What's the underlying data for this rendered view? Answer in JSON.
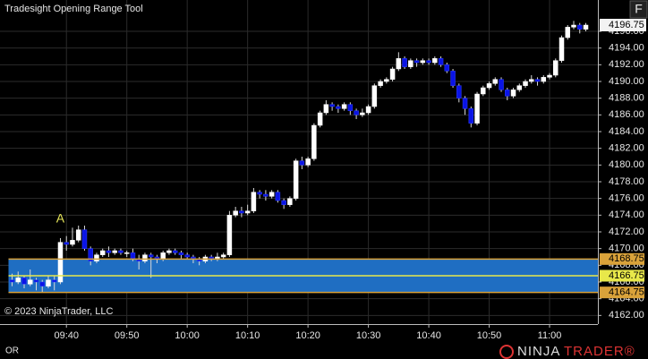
{
  "header": {
    "title": "Tradesight Opening Range Tool",
    "button": "F"
  },
  "chart_data": {
    "type": "candlestick",
    "x": [
      "09:31",
      "09:32",
      "09:33",
      "09:34",
      "09:35",
      "09:36",
      "09:37",
      "09:38",
      "09:39",
      "09:40",
      "09:41",
      "09:42",
      "09:43",
      "09:44",
      "09:45",
      "09:46",
      "09:47",
      "09:48",
      "09:49",
      "09:50",
      "09:51",
      "09:52",
      "09:53",
      "09:54",
      "09:55",
      "09:56",
      "09:57",
      "09:58",
      "09:59",
      "10:00",
      "10:01",
      "10:02",
      "10:03",
      "10:04",
      "10:05",
      "10:06",
      "10:07",
      "10:08",
      "10:09",
      "10:10",
      "10:11",
      "10:12",
      "10:13",
      "10:14",
      "10:15",
      "10:16",
      "10:17",
      "10:18",
      "10:19",
      "10:20",
      "10:21",
      "10:22",
      "10:23",
      "10:24",
      "10:25",
      "10:26",
      "10:27",
      "10:28",
      "10:29",
      "10:30",
      "10:31",
      "10:32",
      "10:33",
      "10:34",
      "10:35",
      "10:36",
      "10:37",
      "10:38",
      "10:39",
      "10:40",
      "10:41",
      "10:42",
      "10:43",
      "10:44",
      "10:45",
      "10:46",
      "10:47",
      "10:48",
      "10:49",
      "10:50",
      "10:51",
      "10:52",
      "10:53",
      "10:54",
      "10:55",
      "10:56",
      "10:57",
      "10:58",
      "10:59",
      "11:00",
      "11:01",
      "11:02",
      "11:03",
      "11:04",
      "11:05",
      "11:06"
    ],
    "open": [
      4166.25,
      4166.0,
      4166.5,
      4165.75,
      4166.25,
      4166.0,
      4165.5,
      4166.25,
      4166.0,
      4170.75,
      4170.5,
      4171.0,
      4172.25,
      4170.0,
      4168.5,
      4169.25,
      4169.75,
      4169.5,
      4169.75,
      4169.5,
      4169.5,
      4168.75,
      4168.5,
      4169.25,
      4169.0,
      4168.75,
      4169.5,
      4169.75,
      4169.5,
      4169.25,
      4169.0,
      4168.75,
      4168.5,
      4169.0,
      4168.75,
      4169.0,
      4169.25,
      4174.0,
      4174.5,
      4174.25,
      4174.5,
      4176.75,
      4176.5,
      4176.25,
      4176.75,
      4175.75,
      4175.25,
      4176.0,
      4180.5,
      4180.0,
      4180.75,
      4184.75,
      4186.25,
      4187.25,
      4187.0,
      4186.75,
      4187.25,
      4186.5,
      4186.0,
      4186.25,
      4187.0,
      4189.5,
      4190.0,
      4190.25,
      4191.5,
      4192.75,
      4191.75,
      4192.5,
      4192.25,
      4192.5,
      4192.25,
      4192.75,
      4192.0,
      4191.25,
      4189.5,
      4188.0,
      4186.75,
      4185.0,
      4188.5,
      4189.25,
      4189.75,
      4190.25,
      4189.0,
      4188.25,
      4189.0,
      4189.5,
      4190.0,
      4190.25,
      4190.0,
      4190.5,
      4190.75,
      4192.5,
      4195.25,
      4196.5,
      4196.75,
      4196.25
    ],
    "high": [
      4167.0,
      4167.25,
      4166.75,
      4167.5,
      4166.5,
      4166.25,
      4166.75,
      4166.75,
      4171.25,
      4171.5,
      4172.5,
      4172.75,
      4172.75,
      4170.25,
      4169.5,
      4170.0,
      4170.25,
      4170.0,
      4170.0,
      4169.75,
      4170.0,
      4169.25,
      4169.5,
      4169.5,
      4169.25,
      4169.75,
      4170.0,
      4170.0,
      4169.75,
      4169.5,
      4169.25,
      4169.0,
      4169.25,
      4169.25,
      4169.5,
      4169.5,
      4174.5,
      4175.0,
      4175.0,
      4175.25,
      4177.25,
      4177.0,
      4177.0,
      4177.0,
      4177.0,
      4176.0,
      4176.25,
      4180.75,
      4181.0,
      4181.0,
      4185.0,
      4186.5,
      4187.75,
      4187.5,
      4187.25,
      4187.5,
      4187.5,
      4186.75,
      4186.75,
      4187.25,
      4189.75,
      4190.25,
      4190.5,
      4191.75,
      4193.5,
      4193.0,
      4192.75,
      4192.75,
      4192.75,
      4192.75,
      4193.0,
      4193.0,
      4192.25,
      4191.5,
      4189.75,
      4188.25,
      4187.0,
      4188.75,
      4189.5,
      4190.0,
      4190.5,
      4190.5,
      4189.25,
      4189.25,
      4189.75,
      4190.25,
      4190.75,
      4190.5,
      4190.75,
      4191.0,
      4192.75,
      4195.5,
      4196.75,
      4197.25,
      4197.0,
      4197.0
    ],
    "low": [
      4165.5,
      4165.75,
      4165.25,
      4165.5,
      4165.0,
      4164.75,
      4165.25,
      4165.0,
      4165.75,
      4169.75,
      4170.25,
      4170.75,
      4169.75,
      4168.0,
      4168.25,
      4169.0,
      4169.0,
      4169.25,
      4169.25,
      4169.0,
      4168.5,
      4167.5,
      4168.25,
      4166.5,
      4168.25,
      4168.5,
      4169.25,
      4169.25,
      4168.75,
      4168.75,
      4168.25,
      4168.0,
      4168.25,
      4168.5,
      4168.5,
      4168.75,
      4169.0,
      4173.75,
      4173.75,
      4174.0,
      4174.25,
      4176.0,
      4175.75,
      4176.0,
      4175.5,
      4174.75,
      4175.0,
      4175.75,
      4179.5,
      4179.75,
      4180.5,
      4184.5,
      4186.0,
      4186.5,
      4186.25,
      4186.5,
      4186.0,
      4185.5,
      4185.75,
      4186.0,
      4186.75,
      4189.25,
      4189.75,
      4190.0,
      4191.25,
      4191.5,
      4191.5,
      4191.75,
      4192.0,
      4192.0,
      4192.0,
      4191.75,
      4191.0,
      4189.25,
      4187.5,
      4186.0,
      4184.5,
      4184.75,
      4188.25,
      4189.0,
      4189.5,
      4188.75,
      4187.75,
      4188.0,
      4188.75,
      4189.25,
      4189.75,
      4189.5,
      4189.75,
      4190.25,
      4190.5,
      4192.25,
      4195.0,
      4196.25,
      4195.75,
      4196.0
    ],
    "close": [
      4166.0,
      4166.5,
      4165.75,
      4166.25,
      4166.0,
      4165.5,
      4166.25,
      4166.0,
      4170.75,
      4170.5,
      4171.0,
      4172.25,
      4170.0,
      4168.5,
      4169.25,
      4169.75,
      4169.5,
      4169.75,
      4169.5,
      4169.5,
      4168.75,
      4168.5,
      4169.25,
      4169.0,
      4168.75,
      4169.5,
      4169.75,
      4169.5,
      4169.25,
      4169.0,
      4168.75,
      4168.5,
      4169.0,
      4168.75,
      4169.0,
      4169.25,
      4174.0,
      4174.5,
      4174.25,
      4174.5,
      4176.75,
      4176.5,
      4176.25,
      4176.75,
      4175.75,
      4175.25,
      4176.0,
      4180.5,
      4180.0,
      4180.75,
      4184.75,
      4186.25,
      4187.25,
      4187.0,
      4186.75,
      4187.25,
      4186.5,
      4186.0,
      4186.25,
      4187.0,
      4189.5,
      4190.0,
      4190.25,
      4191.5,
      4192.75,
      4191.75,
      4192.5,
      4192.25,
      4192.5,
      4192.25,
      4192.75,
      4192.0,
      4191.25,
      4189.5,
      4188.0,
      4186.75,
      4185.0,
      4188.5,
      4189.25,
      4189.75,
      4190.25,
      4189.0,
      4188.25,
      4189.0,
      4189.5,
      4190.0,
      4190.25,
      4190.0,
      4190.5,
      4190.75,
      4192.5,
      4195.25,
      4196.5,
      4196.75,
      4196.25,
      4196.75
    ],
    "up_color": "#ffffff",
    "down_color": "#0a14e6",
    "xlim": [
      "09:29",
      "11:08"
    ],
    "xticks": [
      "09:40",
      "09:50",
      "10:00",
      "10:10",
      "10:20",
      "10:30",
      "10:40",
      "10:50",
      "11:00"
    ],
    "ylim": [
      4158.5,
      4198.25
    ],
    "yticks": [
      {
        "value": 4162,
        "label": "4162.00"
      },
      {
        "value": 4164,
        "label": "4164.00"
      },
      {
        "value": 4166,
        "label": "4166.00"
      },
      {
        "value": 4168,
        "label": "4168.00"
      },
      {
        "value": 4170,
        "label": "4170.00"
      },
      {
        "value": 4172,
        "label": "4172.00"
      },
      {
        "value": 4174,
        "label": "4174.00"
      },
      {
        "value": 4176,
        "label": "4176.00"
      },
      {
        "value": 4178,
        "label": "4178.00"
      },
      {
        "value": 4180,
        "label": "4180.00"
      },
      {
        "value": 4182,
        "label": "4182.00"
      },
      {
        "value": 4184,
        "label": "4184.00"
      },
      {
        "value": 4186,
        "label": "4186.00"
      },
      {
        "value": 4188,
        "label": "4188.00"
      },
      {
        "value": 4190,
        "label": "4190.00"
      },
      {
        "value": 4192,
        "label": "4192.00"
      },
      {
        "value": 4194,
        "label": "4194.00"
      },
      {
        "value": 4196,
        "label": "4196.00"
      }
    ],
    "grid": true,
    "opening_range": {
      "start": "09:31",
      "high": 4168.75,
      "mid": 4166.75,
      "low": 4164.75,
      "fill": "#1f6ec2",
      "edge_color": "#d9a23a",
      "mid_color": "#e8e84a"
    },
    "annotation": {
      "text": "A",
      "x": "09:39",
      "y": 4173.5,
      "color": "#e6e65a"
    }
  },
  "footer": {
    "copyright": "© 2023 NinjaTrader, LLC",
    "indicator": "OR",
    "logo_ninja": "NINJA",
    "logo_trader": "TRADER®"
  }
}
